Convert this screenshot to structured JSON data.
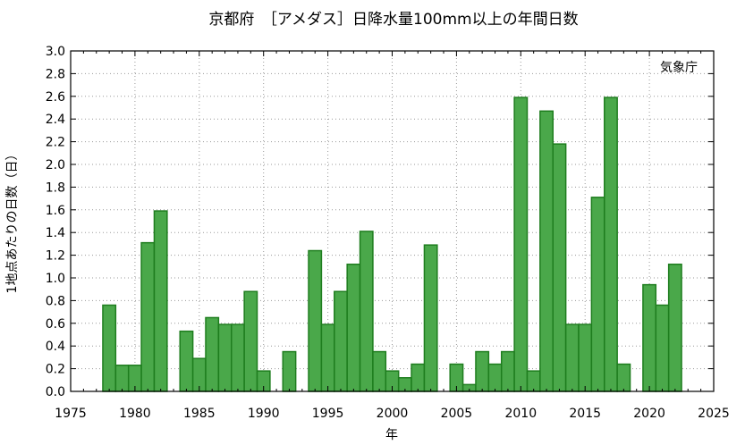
{
  "chart_data": {
    "type": "bar",
    "title": "京都府　［アメダス］日降水量100mm以上の年間日数",
    "xlabel": "年",
    "ylabel": "1地点あたりの日数（日）",
    "credit": "気象庁",
    "xlim": [
      1975,
      2025
    ],
    "ylim": [
      0,
      3.0
    ],
    "x_ticks": [
      1975,
      1980,
      1985,
      1990,
      1995,
      2000,
      2005,
      2010,
      2015,
      2020,
      2025
    ],
    "y_ticks": [
      "0.0",
      "0.2",
      "0.4",
      "0.6",
      "0.8",
      "1.0",
      "1.2",
      "1.4",
      "1.6",
      "1.8",
      "2.0",
      "2.2",
      "2.4",
      "2.6",
      "2.8",
      "3.0"
    ],
    "grid": true,
    "bar_fill": "#4aa84a",
    "bar_edge": "#1e7d1e",
    "x": [
      1976,
      1977,
      1978,
      1979,
      1980,
      1981,
      1982,
      1983,
      1984,
      1985,
      1986,
      1987,
      1988,
      1989,
      1990,
      1991,
      1992,
      1993,
      1994,
      1995,
      1996,
      1997,
      1998,
      1999,
      2000,
      2001,
      2002,
      2003,
      2004,
      2005,
      2006,
      2007,
      2008,
      2009,
      2010,
      2011,
      2012,
      2013,
      2014,
      2015,
      2016,
      2017,
      2018,
      2019,
      2020,
      2021,
      2022,
      2023
    ],
    "values": [
      0,
      0,
      0.76,
      0.23,
      0.23,
      1.31,
      1.59,
      0,
      0.53,
      0.29,
      0.65,
      0.59,
      0.59,
      0.88,
      0.18,
      0,
      0.35,
      0,
      1.24,
      0.59,
      0.88,
      1.12,
      1.41,
      0.35,
      0.18,
      0.12,
      0.24,
      1.29,
      0,
      0.24,
      0.06,
      0.35,
      0.24,
      0.35,
      2.59,
      0.18,
      2.47,
      2.18,
      0.59,
      0.59,
      1.71,
      2.59,
      0.24,
      0,
      0.94,
      0.76,
      1.12,
      0
    ]
  }
}
